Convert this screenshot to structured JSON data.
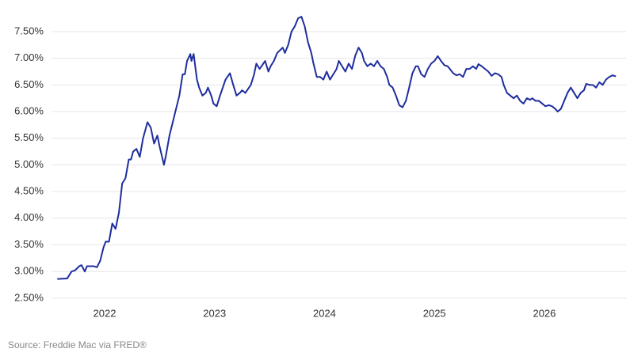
{
  "chart_data": {
    "type": "line",
    "source": "Source: Freddie Mac via FRED®",
    "color": "#1f2d9e",
    "grid": true,
    "xlim": [
      2021.5,
      2026.75
    ],
    "xticks": [
      2022,
      2023,
      2024,
      2025,
      2026
    ],
    "ylim": [
      2.35,
      7.9
    ],
    "yticks": [
      {
        "value": 2.5,
        "label": "2.50%"
      },
      {
        "value": 3.0,
        "label": "3.00%"
      },
      {
        "value": 3.5,
        "label": "3.50%"
      },
      {
        "value": 4.0,
        "label": "4.00%"
      },
      {
        "value": 4.5,
        "label": "4.50%"
      },
      {
        "value": 5.0,
        "label": "5.00%"
      },
      {
        "value": 5.5,
        "label": "5.50%"
      },
      {
        "value": 6.0,
        "label": "6.00%"
      },
      {
        "value": 6.5,
        "label": "6.50%"
      },
      {
        "value": 7.0,
        "label": "7.00%"
      },
      {
        "value": 7.5,
        "label": "7.50%"
      }
    ],
    "x": [
      2021.57,
      2021.66,
      2021.7,
      2021.73,
      2021.77,
      2021.79,
      2021.82,
      2021.84,
      2021.9,
      2021.93,
      2021.96,
      2021.99,
      2022.01,
      2022.04,
      2022.07,
      2022.1,
      2022.13,
      2022.16,
      2022.19,
      2022.22,
      2022.24,
      2022.26,
      2022.29,
      2022.32,
      2022.35,
      2022.39,
      2022.42,
      2022.45,
      2022.48,
      2022.5,
      2022.54,
      2022.56,
      2022.59,
      2022.62,
      2022.65,
      2022.68,
      2022.71,
      2022.73,
      2022.75,
      2022.78,
      2022.79,
      2022.81,
      2022.84,
      2022.86,
      2022.89,
      2022.92,
      2022.94,
      2022.97,
      2022.99,
      2023.02,
      2023.05,
      2023.1,
      2023.14,
      2023.17,
      2023.2,
      2023.23,
      2023.25,
      2023.28,
      2023.33,
      2023.36,
      2023.38,
      2023.41,
      2023.46,
      2023.49,
      2023.51,
      2023.54,
      2023.57,
      2023.62,
      2023.64,
      2023.67,
      2023.7,
      2023.73,
      2023.76,
      2023.79,
      2023.82,
      2023.85,
      2023.88,
      2023.9,
      2023.93,
      2023.96,
      2023.99,
      2024.02,
      2024.05,
      2024.08,
      2024.11,
      2024.13,
      2024.16,
      2024.19,
      2024.22,
      2024.25,
      2024.28,
      2024.31,
      2024.34,
      2024.36,
      2024.39,
      2024.42,
      2024.45,
      2024.48,
      2024.51,
      2024.54,
      2024.57,
      2024.59,
      2024.62,
      2024.65,
      2024.68,
      2024.71,
      2024.74,
      2024.77,
      2024.8,
      2024.83,
      2024.85,
      2024.88,
      2024.91,
      2024.94,
      2024.97,
      2025.0,
      2025.03,
      2025.06,
      2025.09,
      2025.12,
      2025.14,
      2025.17,
      2025.2,
      2025.23,
      2025.26,
      2025.29,
      2025.32,
      2025.35,
      2025.38,
      2025.4,
      2025.43,
      2025.46,
      2025.49,
      2025.52,
      2025.55,
      2025.58,
      2025.61,
      2025.63,
      2025.66,
      2025.69,
      2025.72,
      2025.75,
      2025.78,
      2025.81,
      2025.84,
      2025.87,
      2025.89,
      2025.92,
      2025.95,
      2025.98,
      2026.01,
      2026.04,
      2026.07,
      2026.1,
      2026.12,
      2026.15,
      2026.18,
      2026.21,
      2026.24,
      2026.27,
      2026.3,
      2026.33,
      2026.36,
      2026.38,
      2026.41,
      2026.44,
      2026.47,
      2026.5,
      2026.53,
      2026.56,
      2026.59,
      2026.62,
      2026.65
    ],
    "values": [
      2.86,
      2.87,
      3.0,
      3.02,
      3.1,
      3.12,
      3.0,
      3.1,
      3.1,
      3.08,
      3.2,
      3.45,
      3.56,
      3.56,
      3.9,
      3.8,
      4.1,
      4.65,
      4.75,
      5.1,
      5.1,
      5.25,
      5.3,
      5.15,
      5.5,
      5.8,
      5.7,
      5.4,
      5.55,
      5.35,
      5.0,
      5.2,
      5.55,
      5.8,
      6.05,
      6.3,
      6.7,
      6.7,
      6.95,
      7.08,
      6.95,
      7.08,
      6.6,
      6.45,
      6.3,
      6.35,
      6.45,
      6.3,
      6.15,
      6.1,
      6.3,
      6.6,
      6.72,
      6.5,
      6.3,
      6.35,
      6.4,
      6.35,
      6.5,
      6.7,
      6.9,
      6.8,
      6.95,
      6.75,
      6.85,
      6.95,
      7.1,
      7.2,
      7.1,
      7.25,
      7.5,
      7.6,
      7.75,
      7.78,
      7.6,
      7.3,
      7.1,
      6.9,
      6.65,
      6.65,
      6.6,
      6.75,
      6.6,
      6.7,
      6.8,
      6.95,
      6.85,
      6.75,
      6.9,
      6.8,
      7.05,
      7.2,
      7.1,
      6.95,
      6.85,
      6.9,
      6.85,
      6.95,
      6.85,
      6.8,
      6.65,
      6.5,
      6.45,
      6.3,
      6.12,
      6.08,
      6.2,
      6.45,
      6.72,
      6.85,
      6.85,
      6.7,
      6.65,
      6.8,
      6.9,
      6.95,
      7.04,
      6.95,
      6.87,
      6.85,
      6.8,
      6.72,
      6.68,
      6.7,
      6.65,
      6.8,
      6.8,
      6.85,
      6.8,
      6.89,
      6.85,
      6.8,
      6.75,
      6.67,
      6.72,
      6.7,
      6.65,
      6.5,
      6.35,
      6.3,
      6.25,
      6.3,
      6.2,
      6.15,
      6.25,
      6.22,
      6.25,
      6.2,
      6.2,
      6.15,
      6.1,
      6.12,
      6.1,
      6.05,
      6.0,
      6.05,
      6.2,
      6.35,
      6.45,
      6.35,
      6.25,
      6.35,
      6.4,
      6.52,
      6.5,
      6.5,
      6.45,
      6.55,
      6.5,
      6.6,
      6.65,
      6.68,
      6.66
    ]
  }
}
